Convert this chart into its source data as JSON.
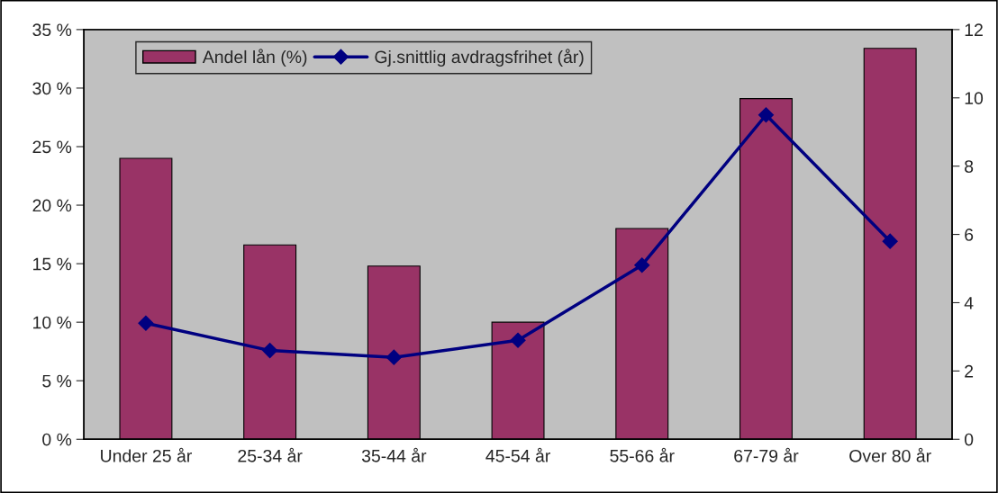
{
  "chart_data": {
    "type": "bar",
    "categories": [
      "Under 25 år",
      "25-34 år",
      "35-44 år",
      "45-54 år",
      "55-66 år",
      "67-79 år",
      "Over 80 år"
    ],
    "series": [
      {
        "name": "Andel lån (%)",
        "color": "#993366",
        "values": [
          24,
          16.6,
          14.8,
          10,
          18,
          29.1,
          33.4
        ]
      },
      {
        "name": "Gj.snittlig avdragsfrihet (år)",
        "type": "line",
        "axis": "y2",
        "color": "#000080",
        "marker": "diamond",
        "values": [
          3.4,
          2.6,
          2.4,
          2.9,
          5.1,
          9.5,
          5.8
        ]
      }
    ],
    "ylim": [
      0,
      35
    ],
    "yticks": [
      {
        "value": 0,
        "label": "0 %"
      },
      {
        "value": 5,
        "label": "5 %"
      },
      {
        "value": 10,
        "label": "10 %"
      },
      {
        "value": 15,
        "label": "15 %"
      },
      {
        "value": 20,
        "label": "20 %"
      },
      {
        "value": 25,
        "label": "25 %"
      },
      {
        "value": 30,
        "label": "30 %"
      },
      {
        "value": 35,
        "label": "35 %"
      }
    ],
    "y2lim": [
      0,
      12
    ],
    "y2ticks": [
      0,
      2,
      4,
      6,
      8,
      10,
      12
    ],
    "grid": false,
    "legend": "top left"
  }
}
